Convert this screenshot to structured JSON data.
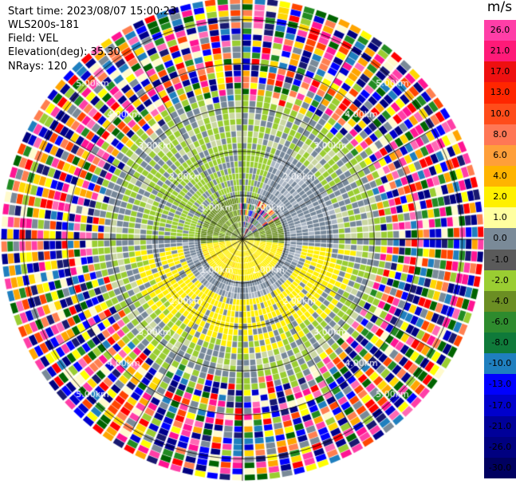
{
  "info": {
    "start_time": "Start time: 2023/08/07 15:00:23",
    "instrument": "WLS200s-181",
    "field": "Field: VEL",
    "elevation": "Elevation(deg): 35.30",
    "nrays": "NRays: 120"
  },
  "colorbar": {
    "unit": "m/s",
    "ticks": [
      "26.0",
      "21.0",
      "17.0",
      "13.0",
      "10.0",
      "8.0",
      "6.0",
      "4.0",
      "2.0",
      "1.0",
      "0.0",
      "-1.0",
      "-2.0",
      "-4.0",
      "-6.0",
      "-8.0",
      "-10.0",
      "-13.0",
      "-17.0",
      "-21.0",
      "-26.0",
      "-30.0"
    ],
    "colors": [
      "#ff3ea7",
      "#ff1a78",
      "#ee1010",
      "#ff2600",
      "#ff4c1a",
      "#ff7755",
      "#ff9f3a",
      "#ffb400",
      "#fff000",
      "#ffffa0",
      "#7a8a98",
      "#5a5a5a",
      "#9acd32",
      "#6b8e23",
      "#2e8b2e",
      "#0f7a3a",
      "#1f7fbf",
      "#0000ff",
      "#0000cc",
      "#000099",
      "#000080",
      "#000060"
    ]
  },
  "range_rings": {
    "labels": [
      "1.00km",
      "2.00km",
      "3.00km",
      "4.00km",
      "5.00km"
    ]
  },
  "ppi": {
    "rays": 120,
    "gates": 40,
    "max_range_km": 5.5
  }
}
